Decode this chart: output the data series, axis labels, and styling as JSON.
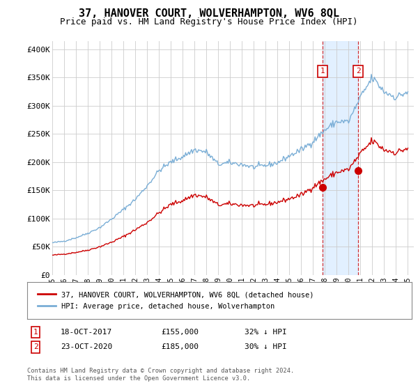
{
  "title": "37, HANOVER COURT, WOLVERHAMPTON, WV6 8QL",
  "subtitle": "Price paid vs. HM Land Registry's House Price Index (HPI)",
  "title_fontsize": 11,
  "subtitle_fontsize": 9,
  "ylabel_ticks": [
    "£0",
    "£50K",
    "£100K",
    "£150K",
    "£200K",
    "£250K",
    "£300K",
    "£350K",
    "£400K"
  ],
  "ytick_values": [
    0,
    50000,
    100000,
    150000,
    200000,
    250000,
    300000,
    350000,
    400000
  ],
  "ylim": [
    0,
    415000
  ],
  "xlim_start": 1995.3,
  "xlim_end": 2025.5,
  "xtick_labels": [
    "1995",
    "1996",
    "1997",
    "1998",
    "1999",
    "2000",
    "2001",
    "2002",
    "2003",
    "2004",
    "2005",
    "2006",
    "2007",
    "2008",
    "2009",
    "2010",
    "2011",
    "2012",
    "2013",
    "2014",
    "2015",
    "2016",
    "2017",
    "2018",
    "2019",
    "2020",
    "2021",
    "2022",
    "2023",
    "2024",
    "2025"
  ],
  "xtick_years": [
    1995,
    1996,
    1997,
    1998,
    1999,
    2000,
    2001,
    2002,
    2003,
    2004,
    2005,
    2006,
    2007,
    2008,
    2009,
    2010,
    2011,
    2012,
    2013,
    2014,
    2015,
    2016,
    2017,
    2018,
    2019,
    2020,
    2021,
    2022,
    2023,
    2024,
    2025
  ],
  "hpi_color": "#7aaed6",
  "property_color": "#cc0000",
  "sale1_year": 2017.8,
  "sale1_value": 155000,
  "sale2_year": 2020.8,
  "sale2_value": 185000,
  "sale1_label": "1",
  "sale2_label": "2",
  "shade_start": 2017.79,
  "shade_end": 2020.82,
  "legend_line1": "37, HANOVER COURT, WOLVERHAMPTON, WV6 8QL (detached house)",
  "legend_line2": "HPI: Average price, detached house, Wolverhampton",
  "annot1_date": "18-OCT-2017",
  "annot1_price": "£155,000",
  "annot1_hpi": "32% ↓ HPI",
  "annot2_date": "23-OCT-2020",
  "annot2_price": "£185,000",
  "annot2_hpi": "30% ↓ HPI",
  "footnote": "Contains HM Land Registry data © Crown copyright and database right 2024.\nThis data is licensed under the Open Government Licence v3.0.",
  "bg_color": "#ffffff",
  "plot_bg_color": "#ffffff",
  "grid_color": "#cccccc"
}
